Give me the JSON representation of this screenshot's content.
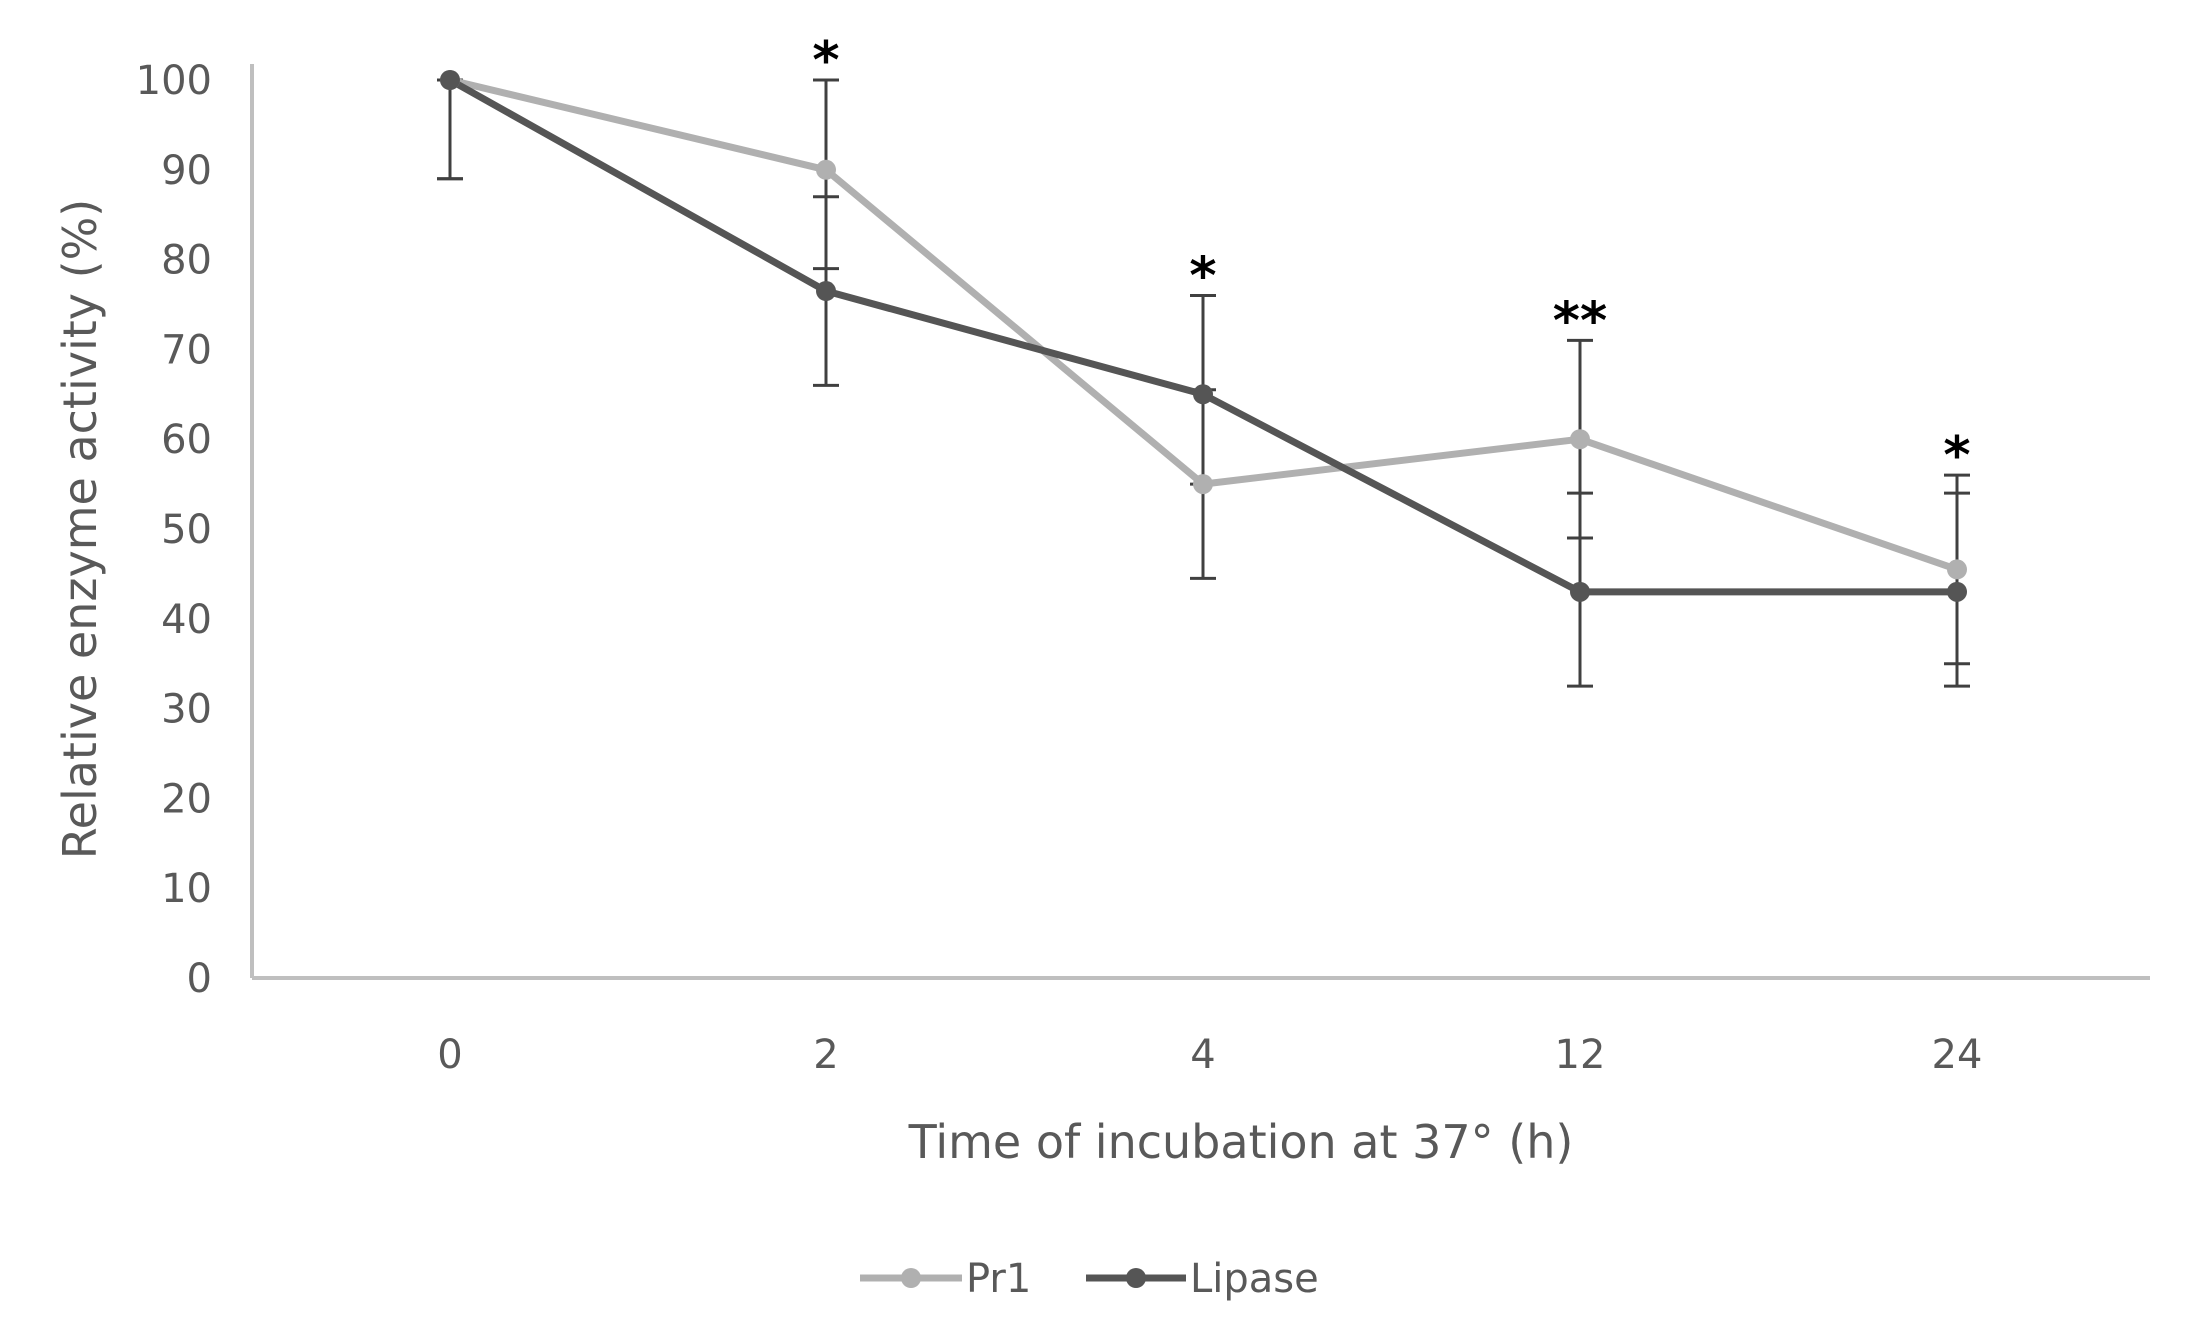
{
  "chart_data": {
    "type": "line",
    "title": "",
    "xlabel": "Time of incubation at 37° (h)",
    "ylabel": "Relative enzyme activity (%)",
    "categories": [
      "0",
      "2",
      "4",
      "12",
      "24"
    ],
    "ylim": [
      0,
      100
    ],
    "yticks": [
      0,
      10,
      20,
      30,
      40,
      50,
      60,
      70,
      80,
      90,
      100
    ],
    "grid": false,
    "legend_position": "bottom",
    "series": [
      {
        "name": "Pr1",
        "color": "#b0b0b0",
        "values": [
          100,
          90,
          55,
          60,
          45.5
        ],
        "error_low": [
          89,
          79,
          44.5,
          49,
          35
        ],
        "error_high": [
          100,
          100,
          65.5,
          71,
          56
        ]
      },
      {
        "name": "Lipase",
        "color": "#555555",
        "values": [
          100,
          76.5,
          65,
          43,
          43
        ],
        "error_low": [
          89,
          66,
          55,
          32.5,
          32.5
        ],
        "error_high": [
          100,
          87,
          76,
          54,
          54
        ]
      }
    ],
    "significance": [
      "",
      "*",
      "*",
      "**",
      "*"
    ]
  }
}
